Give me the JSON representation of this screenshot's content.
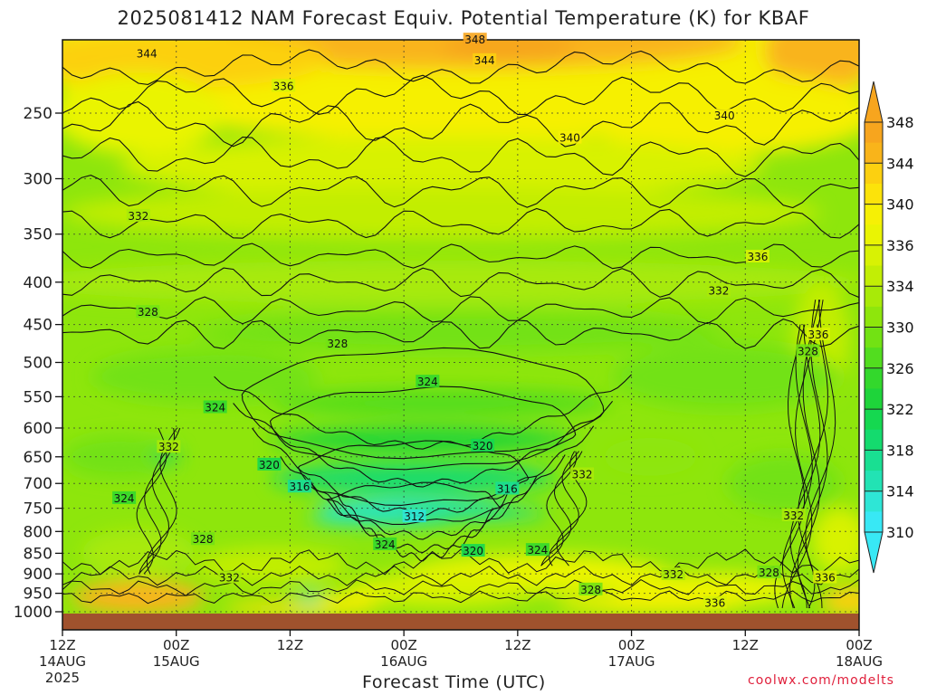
{
  "chart_data": {
    "type": "heatmap",
    "title": "2025081412 NAM Forecast Equiv. Potential Temperature (K) for KBAF",
    "xlabel": "Forecast Time (UTC)",
    "ylabel": "",
    "y_ticks": [
      "250",
      "300",
      "350",
      "400",
      "450",
      "500",
      "550",
      "600",
      "650",
      "700",
      "750",
      "800",
      "850",
      "900",
      "950",
      "1000"
    ],
    "y_scale": "log",
    "y_inverted": true,
    "ylim": [
      1010,
      200
    ],
    "x_ticks": [
      {
        "hour": 0,
        "line1": "12Z",
        "line2": "14AUG",
        "line3": "2025"
      },
      {
        "hour": 12,
        "line1": "00Z",
        "line2": "15AUG",
        "line3": ""
      },
      {
        "hour": 24,
        "line1": "12Z",
        "line2": "",
        "line3": ""
      },
      {
        "hour": 36,
        "line1": "00Z",
        "line2": "16AUG",
        "line3": ""
      },
      {
        "hour": 48,
        "line1": "12Z",
        "line2": "",
        "line3": ""
      },
      {
        "hour": 60,
        "line1": "00Z",
        "line2": "17AUG",
        "line3": ""
      },
      {
        "hour": 72,
        "line1": "12Z",
        "line2": "",
        "line3": ""
      },
      {
        "hour": 84,
        "line1": "00Z",
        "line2": "18AUG",
        "line3": ""
      }
    ],
    "xlim": [
      0,
      84
    ],
    "colorbar": {
      "levels": [
        310,
        312,
        314,
        316,
        318,
        320,
        322,
        324,
        326,
        328,
        330,
        332,
        334,
        336,
        338,
        340,
        342,
        344,
        346,
        348
      ],
      "labels": [
        "310",
        "314",
        "318",
        "322",
        "326",
        "330",
        "334",
        "336",
        "340",
        "344",
        "348"
      ],
      "colors": [
        "#38e8f5",
        "#2ee6d6",
        "#22e3b4",
        "#19df92",
        "#14db6e",
        "#15d850",
        "#1ed43a",
        "#33d82c",
        "#52dd1f",
        "#72e213",
        "#8ee60c",
        "#a8ea08",
        "#c2ee05",
        "#d8f204",
        "#eaf403",
        "#f6f005",
        "#fce30a",
        "#fcd010",
        "#f9b41a",
        "#f7a51e"
      ]
    },
    "surface_color": "#a0522d",
    "contour_labels": [
      {
        "text": "348",
        "t": 43.5,
        "p": 204
      },
      {
        "text": "344",
        "t": 8.9,
        "p": 212
      },
      {
        "text": "344",
        "t": 44.5,
        "p": 216
      },
      {
        "text": "336",
        "t": 23.3,
        "p": 232
      },
      {
        "text": "340",
        "t": 69.8,
        "p": 252
      },
      {
        "text": "340",
        "t": 53.5,
        "p": 268
      },
      {
        "text": "332",
        "t": 8.0,
        "p": 333
      },
      {
        "text": "336",
        "t": 73.3,
        "p": 373
      },
      {
        "text": "332",
        "t": 69.2,
        "p": 410
      },
      {
        "text": "328",
        "t": 9.0,
        "p": 435
      },
      {
        "text": "336",
        "t": 79.7,
        "p": 463
      },
      {
        "text": "328",
        "t": 29.0,
        "p": 475
      },
      {
        "text": "328",
        "t": 78.6,
        "p": 485
      },
      {
        "text": "324",
        "t": 38.5,
        "p": 528
      },
      {
        "text": "324",
        "t": 16.1,
        "p": 567
      },
      {
        "text": "320",
        "t": 44.3,
        "p": 631
      },
      {
        "text": "332",
        "t": 11.2,
        "p": 633
      },
      {
        "text": "320",
        "t": 21.8,
        "p": 665
      },
      {
        "text": "332",
        "t": 54.8,
        "p": 683
      },
      {
        "text": "316",
        "t": 25.0,
        "p": 707
      },
      {
        "text": "316",
        "t": 46.9,
        "p": 711
      },
      {
        "text": "324",
        "t": 6.5,
        "p": 730
      },
      {
        "text": "312",
        "t": 37.1,
        "p": 768
      },
      {
        "text": "332",
        "t": 77.1,
        "p": 766
      },
      {
        "text": "328",
        "t": 14.8,
        "p": 818
      },
      {
        "text": "324",
        "t": 34.0,
        "p": 830
      },
      {
        "text": "320",
        "t": 43.3,
        "p": 845
      },
      {
        "text": "324",
        "t": 50.1,
        "p": 843
      },
      {
        "text": "328",
        "t": 74.5,
        "p": 897
      },
      {
        "text": "332",
        "t": 17.6,
        "p": 910
      },
      {
        "text": "332",
        "t": 64.4,
        "p": 902
      },
      {
        "text": "336",
        "t": 80.4,
        "p": 910
      },
      {
        "text": "328",
        "t": 55.7,
        "p": 941
      },
      {
        "text": "336",
        "t": 68.8,
        "p": 976
      }
    ]
  }
}
